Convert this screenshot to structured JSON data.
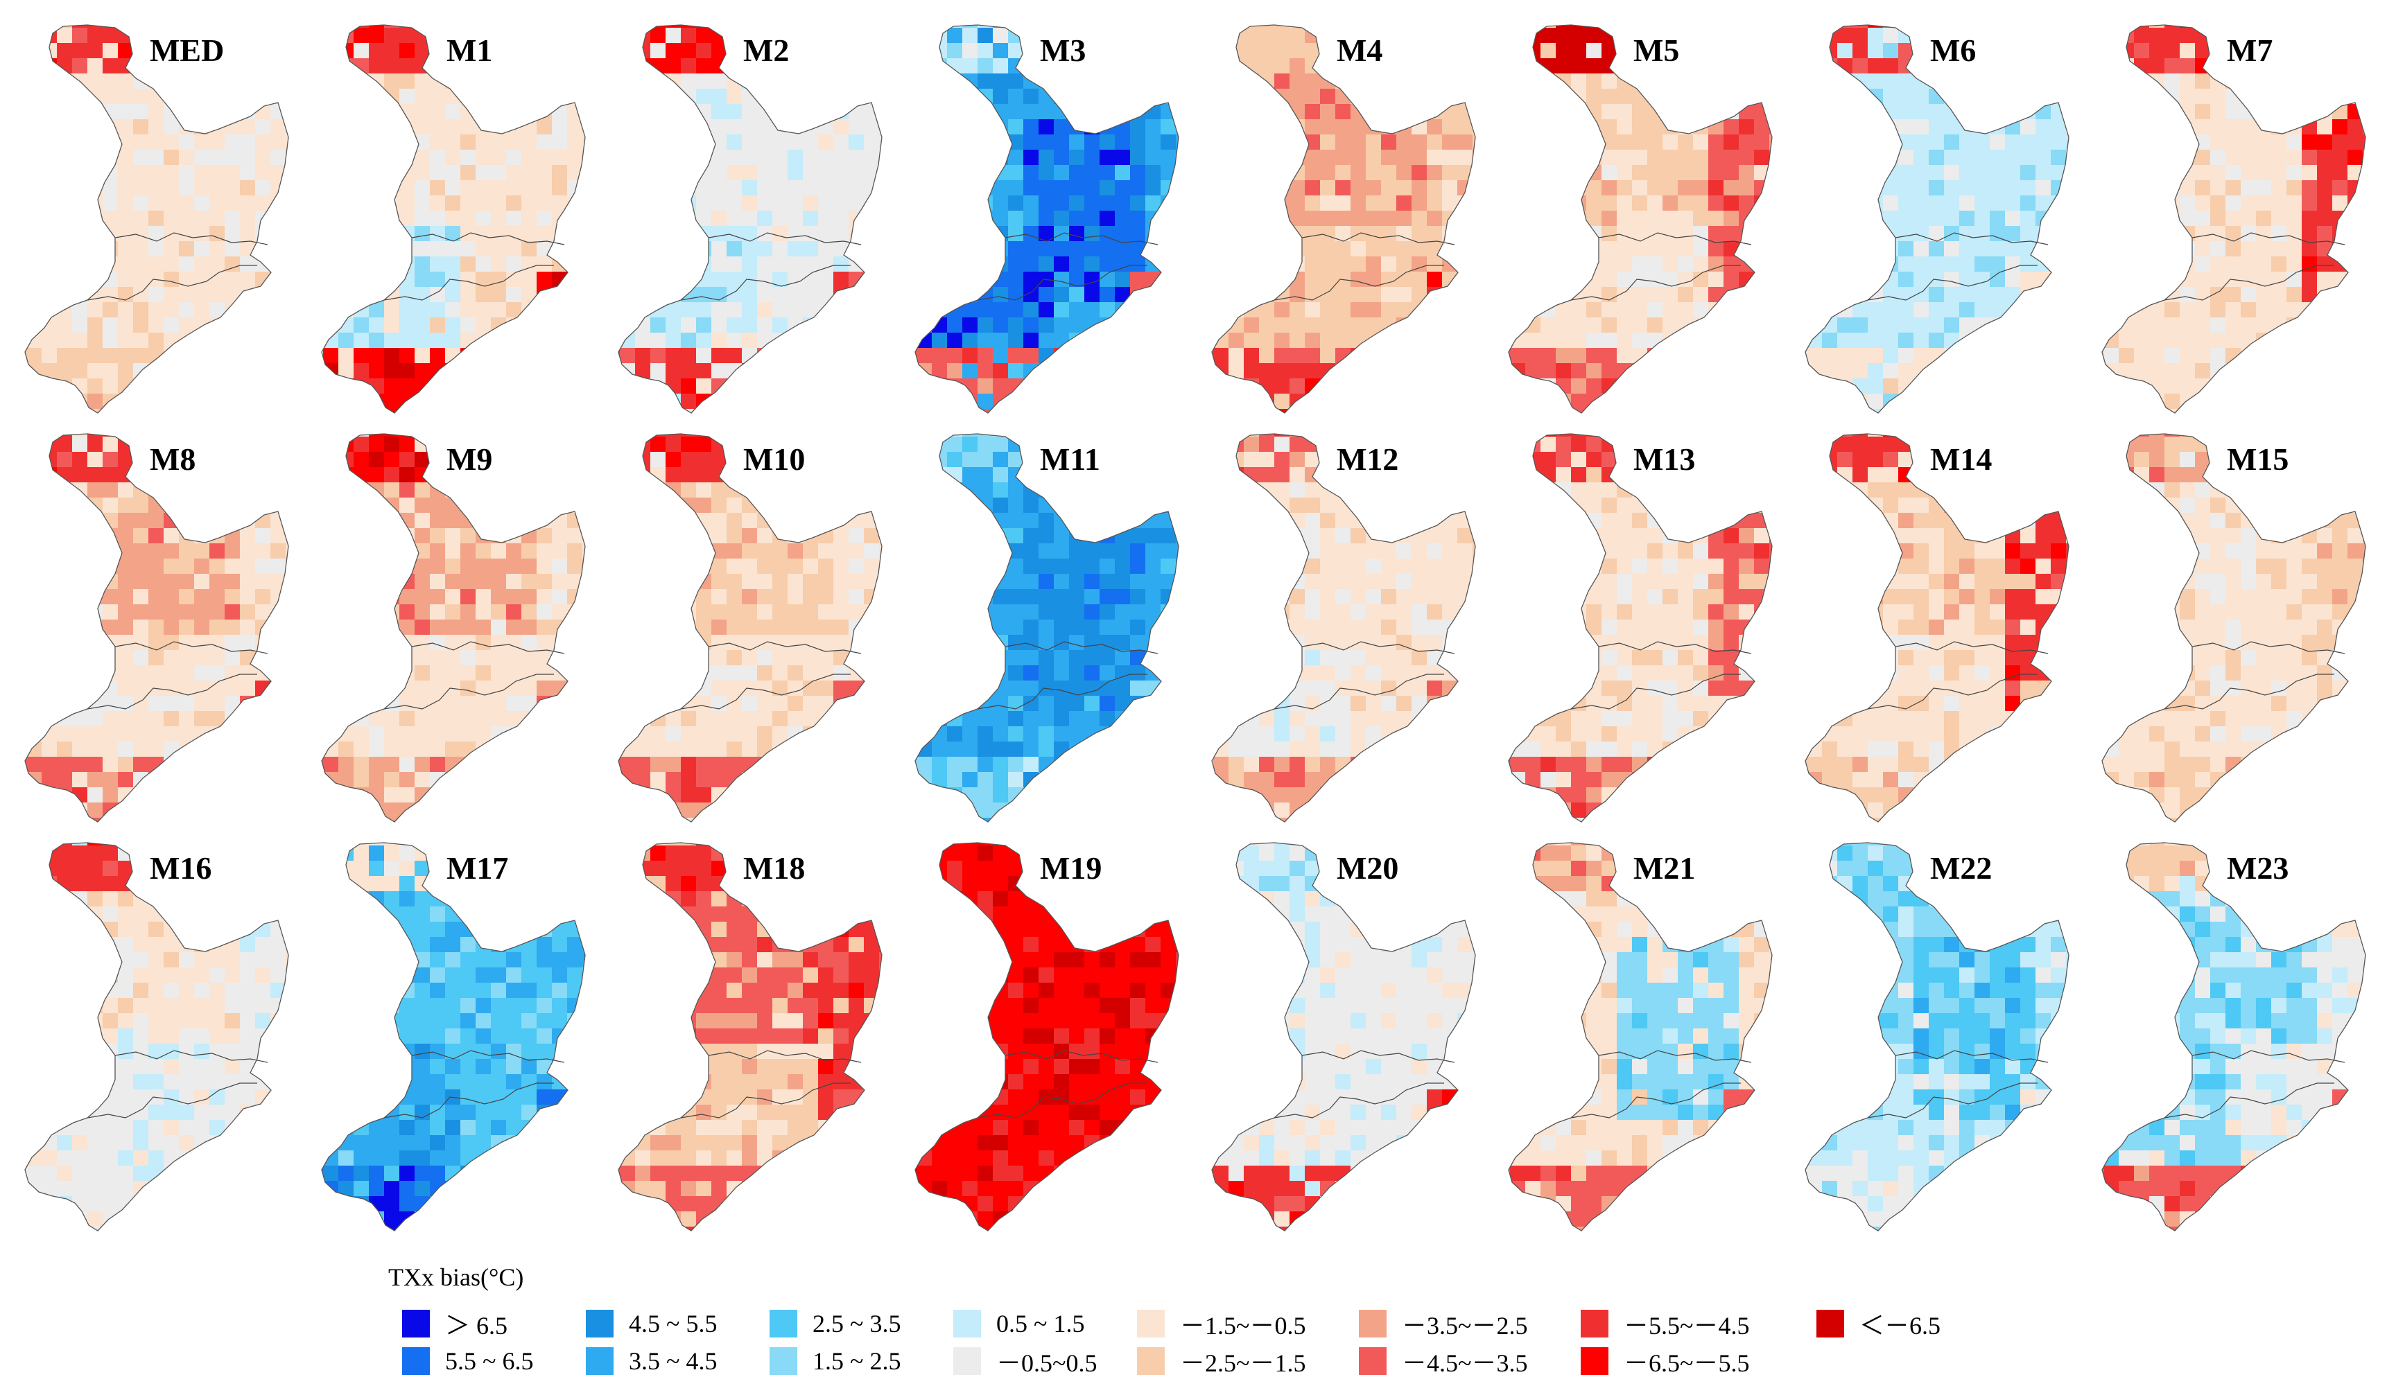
{
  "legend": {
    "title": "TXx bias(°C)",
    "classes": [
      {
        "label": "＞ 6.5",
        "color": "#0808e8"
      },
      {
        "label": "5.5 ~ 6.5",
        "color": "#1470f0"
      },
      {
        "label": "4.5 ~ 5.5",
        "color": "#1a90e2"
      },
      {
        "label": "3.5 ~ 4.5",
        "color": "#2eaaf0"
      },
      {
        "label": "2.5 ~ 3.5",
        "color": "#4ec8f4"
      },
      {
        "label": "1.5 ~ 2.5",
        "color": "#88daf6"
      },
      {
        "label": "0.5 ~ 1.5",
        "color": "#c4ecfa"
      },
      {
        "label": "－0.5~0.5",
        "color": "#ececec"
      },
      {
        "label": "－1.5~－0.5",
        "color": "#fbe4d2"
      },
      {
        "label": "－2.5~－1.5",
        "color": "#f8cdab"
      },
      {
        "label": "－3.5~－2.5",
        "color": "#f3a488"
      },
      {
        "label": "－4.5~－3.5",
        "color": "#f25a5a"
      },
      {
        "label": "－5.5~－4.5",
        "color": "#f03030"
      },
      {
        "label": "－6.5~－5.5",
        "color": "#ff0000"
      },
      {
        "label": "＜－6.5",
        "color": "#d40000"
      }
    ]
  },
  "panels": [
    {
      "name": "MED",
      "base": 8,
      "regions": [
        [
          "north-tip",
          12
        ],
        [
          "south-coast",
          9
        ]
      ]
    },
    {
      "name": "M1",
      "base": 8,
      "regions": [
        [
          "north-tip",
          12
        ],
        [
          "west-middle",
          6
        ],
        [
          "south-coast",
          13
        ]
      ]
    },
    {
      "name": "M2",
      "base": 7,
      "regions": [
        [
          "north-tip",
          13
        ],
        [
          "west-middle",
          6
        ],
        [
          "south-coast",
          12
        ]
      ]
    },
    {
      "name": "M3",
      "base": 3,
      "regions": [
        [
          "north-tip",
          6
        ],
        [
          "east-interior",
          1
        ],
        [
          "west-middle",
          1
        ],
        [
          "south-coast",
          11
        ]
      ]
    },
    {
      "name": "M4",
      "base": 9,
      "regions": [
        [
          "north-tip",
          9
        ],
        [
          "north-interior",
          10
        ],
        [
          "south-coast",
          12
        ]
      ]
    },
    {
      "name": "M5",
      "base": 8,
      "regions": [
        [
          "north-tip",
          14
        ],
        [
          "north-interior",
          9
        ],
        [
          "east-band",
          11
        ],
        [
          "south-coast",
          11
        ]
      ]
    },
    {
      "name": "M6",
      "base": 6,
      "regions": [
        [
          "north-tip",
          12
        ],
        [
          "south-coast",
          8
        ]
      ]
    },
    {
      "name": "M7",
      "base": 8,
      "regions": [
        [
          "north-tip",
          12
        ],
        [
          "east-band",
          12
        ],
        [
          "south-coast",
          8
        ]
      ]
    },
    {
      "name": "M8",
      "base": 8,
      "regions": [
        [
          "north-tip",
          12
        ],
        [
          "north-interior",
          10
        ],
        [
          "south-coast",
          11
        ]
      ]
    },
    {
      "name": "M9",
      "base": 8,
      "regions": [
        [
          "north-tip",
          13
        ],
        [
          "north-interior",
          10
        ],
        [
          "south-coast",
          10
        ]
      ]
    },
    {
      "name": "M10",
      "base": 8,
      "regions": [
        [
          "north-tip",
          12
        ],
        [
          "north-interior",
          9
        ],
        [
          "south-coast",
          11
        ]
      ]
    },
    {
      "name": "M11",
      "base": 3,
      "regions": [
        [
          "north-tip",
          5
        ],
        [
          "east-interior",
          2
        ],
        [
          "south-coast",
          5
        ]
      ]
    },
    {
      "name": "M12",
      "base": 8,
      "regions": [
        [
          "north-tip",
          11
        ],
        [
          "west-middle",
          7
        ],
        [
          "south-coast",
          10
        ]
      ]
    },
    {
      "name": "M13",
      "base": 8,
      "regions": [
        [
          "north-tip",
          12
        ],
        [
          "east-band",
          11
        ],
        [
          "south-coast",
          11
        ]
      ]
    },
    {
      "name": "M14",
      "base": 8,
      "regions": [
        [
          "north-tip",
          12
        ],
        [
          "north-interior",
          9
        ],
        [
          "east-band",
          12
        ],
        [
          "south-coast",
          9
        ]
      ]
    },
    {
      "name": "M15",
      "base": 8,
      "regions": [
        [
          "north-tip",
          10
        ],
        [
          "east-band",
          9
        ],
        [
          "south-coast",
          9
        ]
      ]
    },
    {
      "name": "M16",
      "base": 7,
      "regions": [
        [
          "north-tip",
          12
        ],
        [
          "north-interior",
          8
        ],
        [
          "south-coast",
          7
        ]
      ]
    },
    {
      "name": "M17",
      "base": 4,
      "regions": [
        [
          "north-tip",
          8
        ],
        [
          "west-middle",
          3
        ],
        [
          "south-coast",
          1
        ]
      ]
    },
    {
      "name": "M18",
      "base": 9,
      "regions": [
        [
          "north-tip",
          12
        ],
        [
          "north-interior",
          11
        ],
        [
          "east-band",
          12
        ],
        [
          "south-coast",
          11
        ]
      ]
    },
    {
      "name": "M19",
      "base": 13,
      "regions": [
        [
          "north-tip",
          13
        ],
        [
          "east-band",
          13
        ],
        [
          "south-coast",
          13
        ]
      ]
    },
    {
      "name": "M20",
      "base": 7,
      "regions": [
        [
          "north-tip",
          6
        ],
        [
          "south-coast",
          12
        ]
      ]
    },
    {
      "name": "M21",
      "base": 8,
      "regions": [
        [
          "north-tip",
          10
        ],
        [
          "east-interior",
          5
        ],
        [
          "south-coast",
          11
        ]
      ]
    },
    {
      "name": "M22",
      "base": 6,
      "regions": [
        [
          "north-tip",
          5
        ],
        [
          "north-interior",
          5
        ],
        [
          "east-interior",
          4
        ],
        [
          "south-coast",
          7
        ]
      ]
    },
    {
      "name": "M23",
      "base": 7,
      "regions": [
        [
          "north-tip",
          9
        ],
        [
          "north-interior",
          5
        ],
        [
          "west-middle",
          5
        ],
        [
          "south-coast",
          11
        ]
      ]
    }
  ]
}
